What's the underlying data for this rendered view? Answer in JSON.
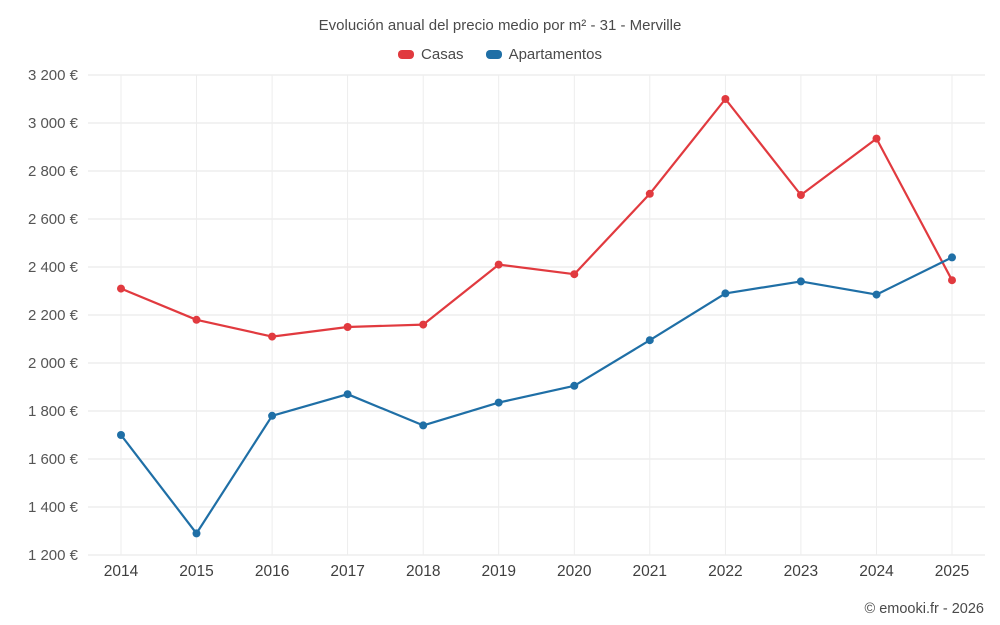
{
  "title": "Evolución anual del precio medio por m² - 31 - Merville",
  "footer": "© emooki.fr - 2026",
  "chart_data": {
    "type": "line",
    "title": "Evolución anual del precio medio por m² - 31 - Merville",
    "categories": [
      "2014",
      "2015",
      "2016",
      "2017",
      "2018",
      "2019",
      "2020",
      "2021",
      "2022",
      "2023",
      "2024",
      "2025"
    ],
    "series": [
      {
        "name": "Casas",
        "color": "#e13a3f",
        "values": [
          2310,
          2180,
          2110,
          2150,
          2160,
          2410,
          2370,
          2705,
          3100,
          2700,
          2935,
          2345
        ]
      },
      {
        "name": "Apartamentos",
        "color": "#1f6fa6",
        "values": [
          1700,
          1290,
          1780,
          1870,
          1740,
          1835,
          1905,
          2095,
          2290,
          2340,
          2285,
          2440
        ]
      }
    ],
    "xlabel": "",
    "ylabel": "",
    "ylim": [
      1200,
      3200
    ],
    "ytick_step": 200,
    "y_suffix": " €",
    "grid": true,
    "legend_position": "top",
    "marker": "circle"
  }
}
